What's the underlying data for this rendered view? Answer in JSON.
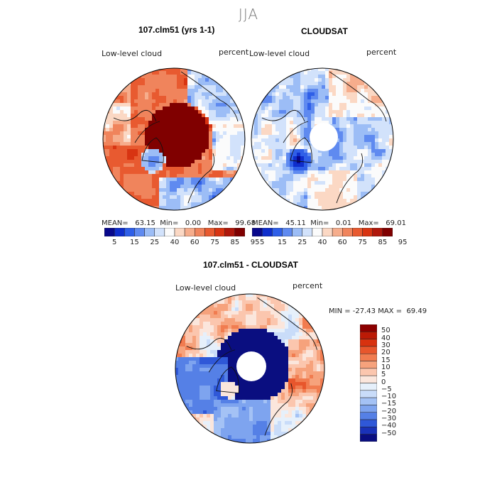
{
  "season": "JJA",
  "panels": [
    {
      "title": "107.clm51 (yrs 1-1)",
      "variable": "Low-level cloud",
      "units": "percent",
      "mean_label": "MEAN=",
      "mean": "63.15",
      "min_label": "Min=",
      "min": "0.00",
      "max_label": "Max=",
      "max": "99.68",
      "pattern": "model"
    },
    {
      "title": "CLOUDSAT",
      "variable": "Low-level cloud",
      "units": "percent",
      "mean_label": "MEAN=",
      "mean": "45.11",
      "min_label": "Min=",
      "min": "0.01",
      "max_label": "Max=",
      "max": "69.01",
      "pattern": "obs"
    },
    {
      "title": "107.clm51 - CLOUDSAT",
      "variable": "Low-level cloud",
      "units": "percent",
      "min_max_text": "MIN = -27.43 MAX =  69.49",
      "pattern": "diff"
    }
  ],
  "abs_colorbar": {
    "labels": [
      "5",
      "15",
      "25",
      "40",
      "60",
      "75",
      "85",
      "95"
    ],
    "colors": [
      "#08088c",
      "#0f2ecc",
      "#2f5fe8",
      "#5f8af0",
      "#9cbdf6",
      "#d2e2fb",
      "#fbfbfb",
      "#fbd8c4",
      "#f6ad8c",
      "#f0845c",
      "#e85a30",
      "#d83412",
      "#b0180c",
      "#800000"
    ]
  },
  "diff_colorbar": {
    "labels": [
      "50",
      "40",
      "30",
      "20",
      "15",
      "10",
      "5",
      "0",
      "−5",
      "−10",
      "−15",
      "−20",
      "−30",
      "−40",
      "−50"
    ],
    "colors": [
      "#8c0000",
      "#bb1a06",
      "#d8320f",
      "#e8562c",
      "#f17c50",
      "#f6a27c",
      "#fbc6ae",
      "#fbe6dc",
      "#e6f0fb",
      "#c9dcf9",
      "#a4c2f5",
      "#7ea4ef",
      "#5580e6",
      "#2f58d8",
      "#1a32b8",
      "#0a0e80"
    ]
  },
  "icon_names": [
    "north-pole-map",
    "coastline",
    "colorbar"
  ]
}
